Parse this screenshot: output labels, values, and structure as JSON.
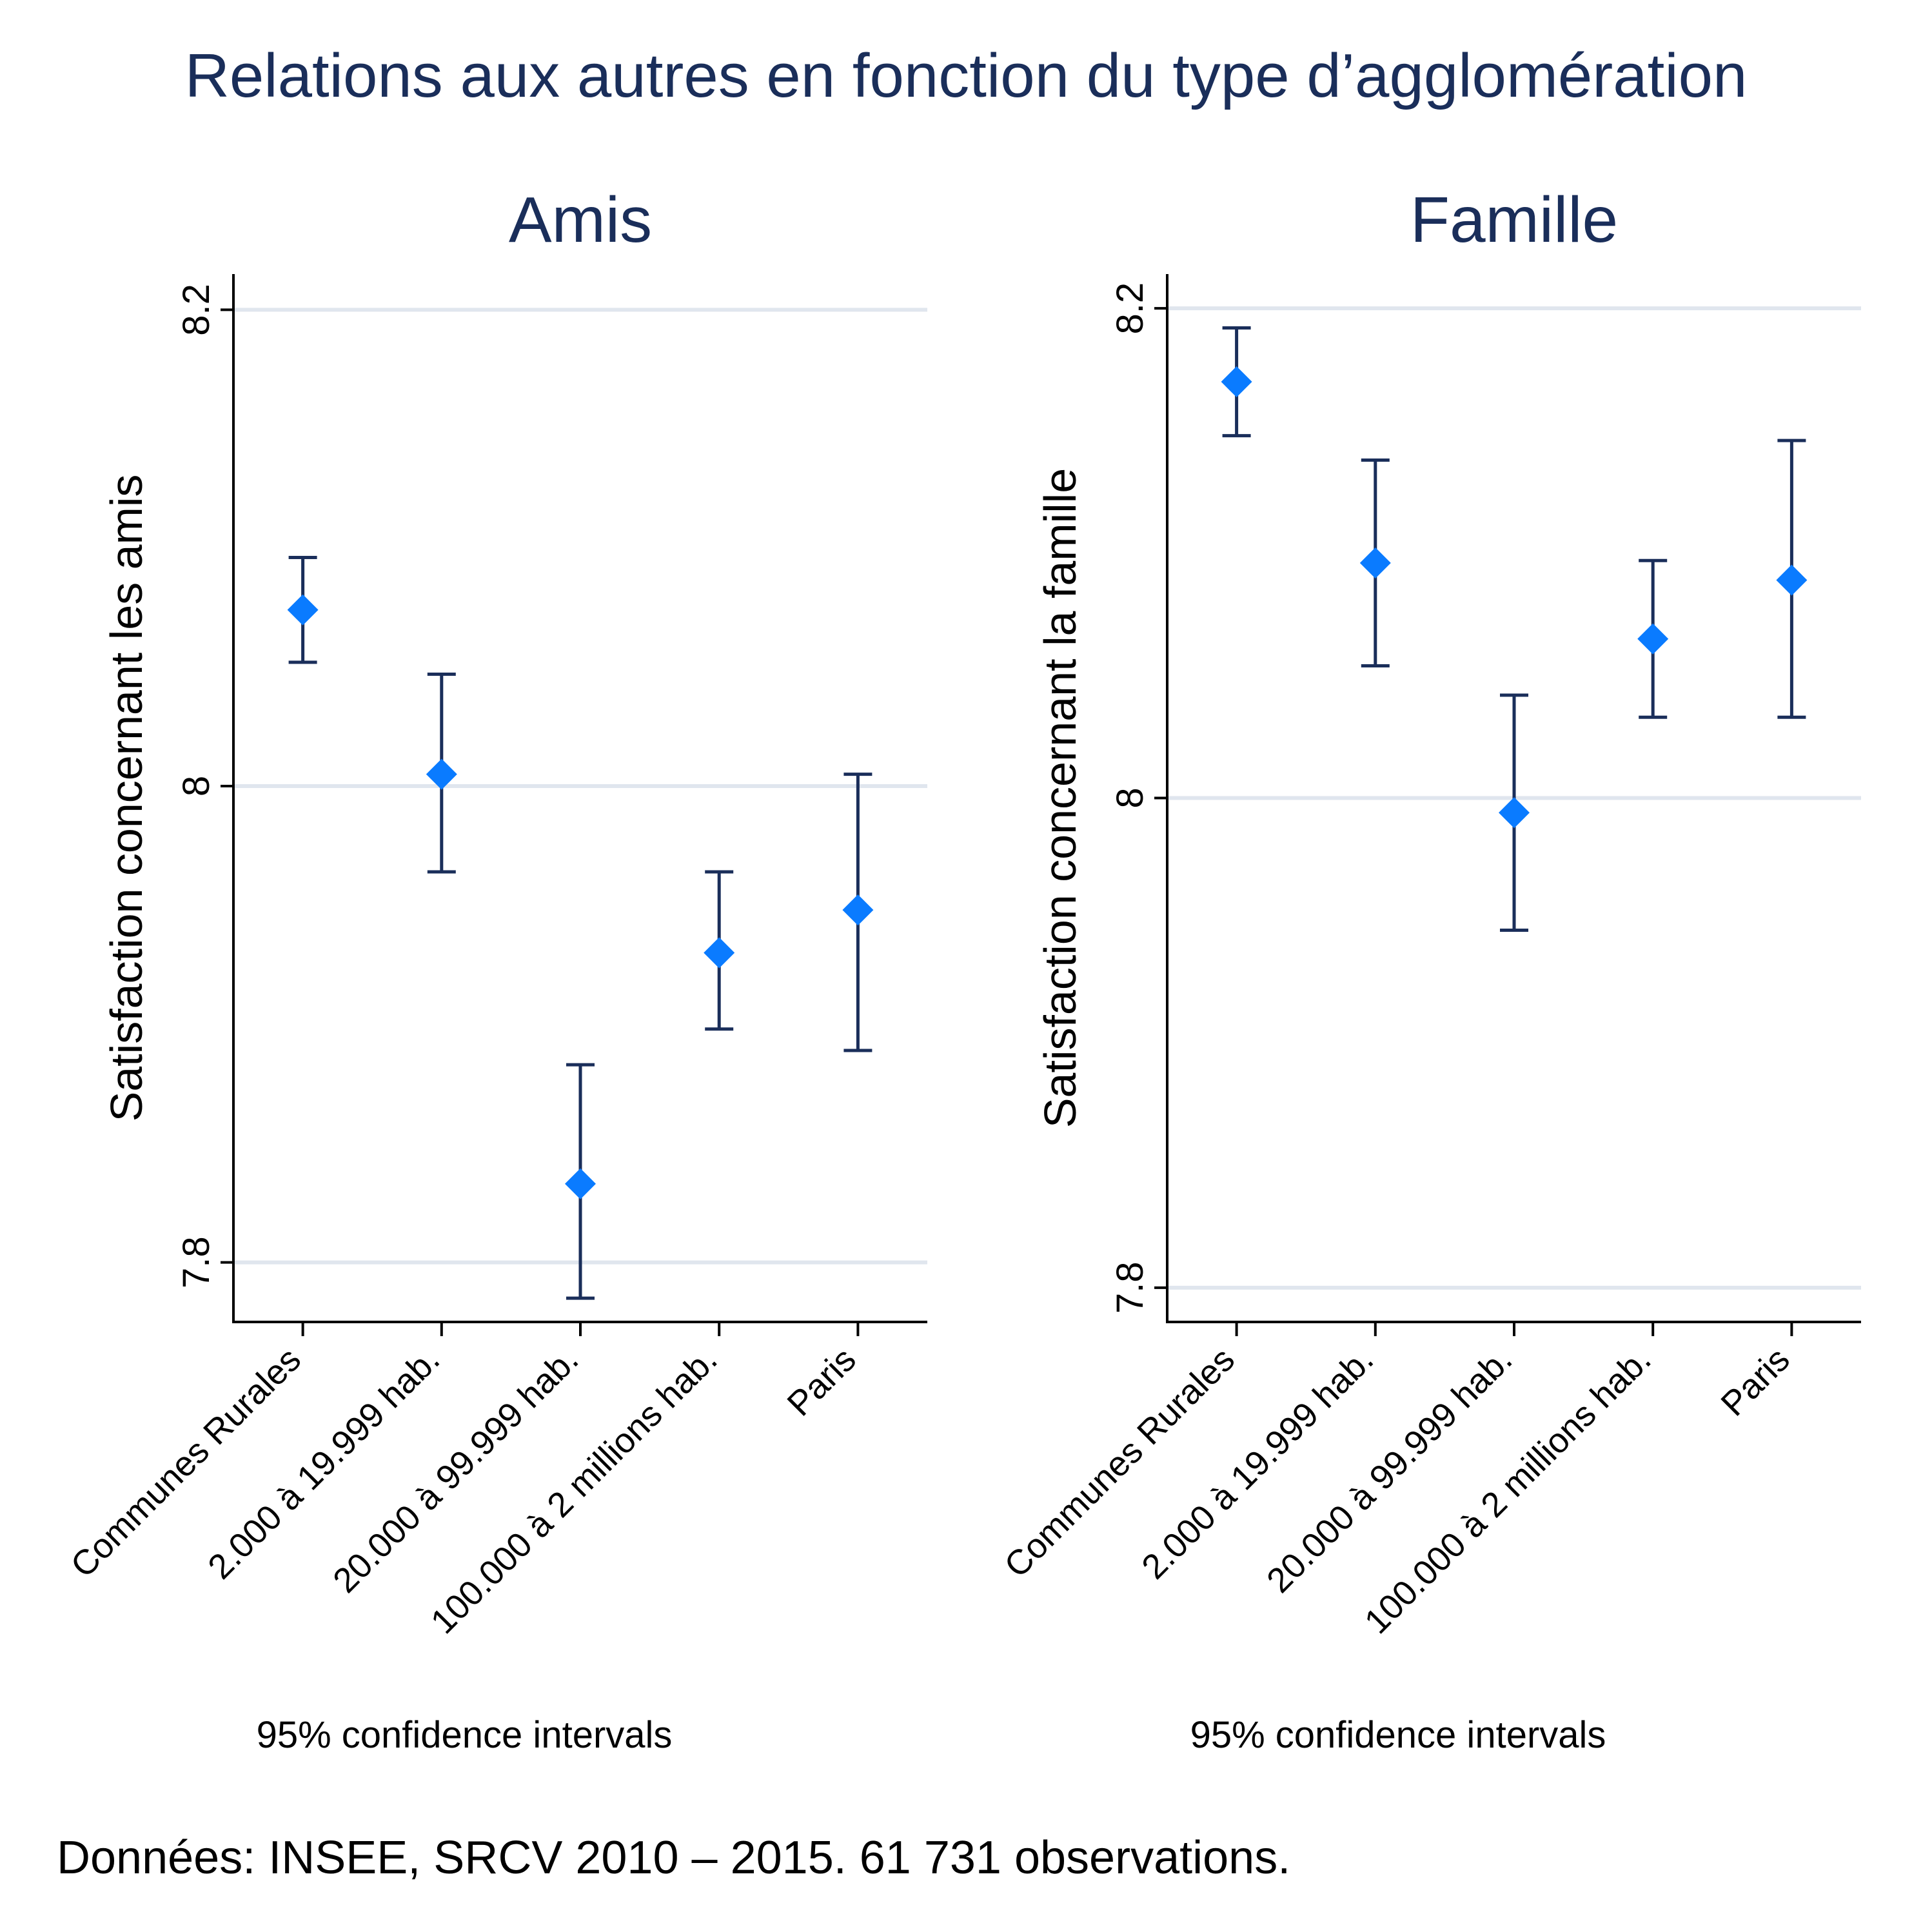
{
  "title": "Relations aux autres en fonction du type d’agglomération",
  "source_note": "Données: INSEE, SRCV 2010 – 2015. 61 731 observations.",
  "colors": {
    "title": "#1a2e5a",
    "marker": "#0a7bff",
    "errorbar": "#1a2e5a",
    "grid": "#e0e6ee",
    "axis": "#000000"
  },
  "chart_data": [
    {
      "type": "scatter",
      "title": "Amis",
      "ylabel": "Satisfaction concernant les amis",
      "xlabel": "",
      "note": "95% confidence intervals",
      "ylim": [
        7.775,
        8.215
      ],
      "yticks": [
        7.8,
        8.0,
        8.2
      ],
      "ytick_labels": [
        "7.8",
        "8",
        "8.2"
      ],
      "grid": true,
      "categories": [
        "Communes Rurales",
        "2.000 à 19.999 hab.",
        "20.000 à 99.999 hab.",
        "100.000 à 2 millions hab.",
        "Paris"
      ],
      "values": [
        8.074,
        8.005,
        7.833,
        7.93,
        7.948
      ],
      "ci_low": [
        8.052,
        7.964,
        7.785,
        7.898,
        7.889
      ],
      "ci_high": [
        8.096,
        8.047,
        7.883,
        7.964,
        8.005
      ]
    },
    {
      "type": "scatter",
      "title": "Famille",
      "ylabel": "Satisfaction concernant la famille",
      "xlabel": "",
      "note": "95% confidence intervals",
      "ylim": [
        7.786,
        8.214
      ],
      "yticks": [
        7.8,
        8.0,
        8.2
      ],
      "ytick_labels": [
        "7.8",
        "8",
        "8.2"
      ],
      "grid": true,
      "categories": [
        "Communes Rurales",
        "2.000 à 19.999 hab.",
        "20.000 à 99.999 hab.",
        "100.000 à 2 millions hab.",
        "Paris"
      ],
      "values": [
        8.17,
        8.096,
        7.994,
        8.065,
        8.089
      ],
      "ci_low": [
        8.148,
        8.054,
        7.946,
        8.033,
        8.033
      ],
      "ci_high": [
        8.192,
        8.138,
        8.042,
        8.097,
        8.146
      ]
    }
  ]
}
